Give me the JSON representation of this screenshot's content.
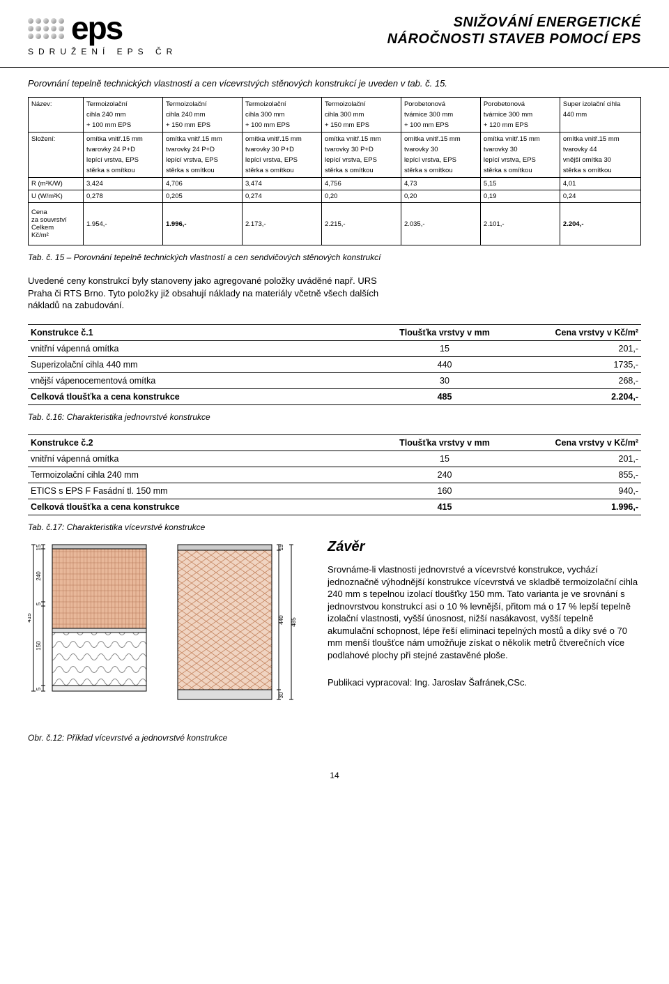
{
  "header": {
    "logo_text": "eps",
    "logo_sub": "SDRUŽENÍ EPS ČR",
    "title_line1": "SNIŽOVÁNÍ ENERGETICKÉ",
    "title_line2": "NÁROČNOSTI STAVEB POMOCÍ EPS"
  },
  "intro": "Porovnání tepelně technických vlastností a cen vícevrstvých stěnových konstrukcí je uveden v tab. č. 15.",
  "big_table": {
    "row_labels": {
      "nazev": "Název:",
      "slozeni": "Složení:",
      "r": "R (m²K/W)",
      "u": "U (W/m²K)",
      "cena1": "Cena",
      "cena2": "za souvrství",
      "cena3": "Celkem",
      "cena4": "Kč/m²"
    },
    "columns": [
      {
        "nazev": [
          "Termoizolační",
          "cihla 240 mm",
          "+ 100 mm EPS"
        ],
        "slozeni": [
          "omítka vnitř.15 mm",
          "tvarovky 24 P+D",
          "lepící vrstva, EPS",
          "stěrka s omítkou"
        ],
        "r": "3,424",
        "u": "0,278",
        "cena": "1.954,-"
      },
      {
        "nazev": [
          "Termoizolační",
          "cihla 240 mm",
          "+ 150 mm EPS"
        ],
        "slozeni": [
          "omítka vnitř.15 mm",
          "tvarovky 24 P+D",
          "lepící vrstva, EPS",
          "stěrka s omítkou"
        ],
        "r": "4,706",
        "u": "0,205",
        "cena": "1.996,-"
      },
      {
        "nazev": [
          "Termoizolační",
          "cihla 300 mm",
          "+ 100 mm EPS"
        ],
        "slozeni": [
          "omítka vnitř.15 mm",
          "tvarovky 30 P+D",
          "lepící vrstva, EPS",
          "stěrka s omítkou"
        ],
        "r": "3,474",
        "u": "0,274",
        "cena": "2.173,-"
      },
      {
        "nazev": [
          "Termoizolační",
          "cihla 300 mm",
          "+ 150 mm EPS"
        ],
        "slozeni": [
          "omítka vnitř.15 mm",
          "tvarovky 30 P+D",
          "lepící vrstva, EPS",
          "stěrka s omítkou"
        ],
        "r": "4,756",
        "u": "0,20",
        "cena": "2.215,-"
      },
      {
        "nazev": [
          "Porobetonová",
          "tvárnice 300 mm",
          "+ 100 mm EPS"
        ],
        "slozeni": [
          "omítka vnitř.15 mm",
          "tvarovky 30",
          "lepící vrstva, EPS",
          "stěrka s omítkou"
        ],
        "r": "4,73",
        "u": "0,20",
        "cena": "2.035,-"
      },
      {
        "nazev": [
          "Porobetonová",
          "tvárnice 300 mm",
          "+ 120 mm EPS"
        ],
        "slozeni": [
          "omítka vnitř.15 mm",
          "tvarovky 30",
          "lepící vrstva, EPS",
          "stěrka s omítkou"
        ],
        "r": "5,15",
        "u": "0,19",
        "cena": "2.101,-"
      },
      {
        "nazev": [
          "Super izolační cihla",
          "440 mm",
          ""
        ],
        "slozeni": [
          "omítka vnitř.15 mm",
          "tvarovky 44",
          "vnější omítka 30",
          "stěrka s omítkou"
        ],
        "r": "4,01",
        "u": "0,24",
        "cena": "2.204,-"
      }
    ],
    "bold_cena_cols": [
      1,
      6
    ]
  },
  "tab15_caption": "Tab. č. 15 – Porovnání tepelně technických vlastností a cen sendvičových stěnových konstrukcí",
  "body_para": "Uvedené ceny konstrukcí byly stanoveny jako agregované položky uváděné např. URS Praha či RTS Brno. Tyto položky již obsahují náklady na materiály včetně všech dalších nákladů na zabudování.",
  "table1": {
    "title": "Konstrukce č.1",
    "col2": "Tloušťka vrstvy v mm",
    "col3": "Cena vrstvy v Kč/m²",
    "rows": [
      [
        "vnitřní vápenná omítka",
        "15",
        "201,-"
      ],
      [
        "Superizolační cihla 440 mm",
        "440",
        "1735,-"
      ],
      [
        "vnější vápenocementová omítka",
        "30",
        "268,-"
      ]
    ],
    "total": [
      "Celková tloušťka a cena konstrukce",
      "485",
      "2.204,-"
    ]
  },
  "tab16_caption": "Tab. č.16: Charakteristika jednovrstvé konstrukce",
  "table2": {
    "title": "Konstrukce č.2",
    "col2": "Tloušťka vrstvy v mm",
    "col3": "Cena vrstvy v Kč/m²",
    "rows": [
      [
        "vnitřní vápenná omítka",
        "15",
        "201,-"
      ],
      [
        "Termoizolační cihla 240 mm",
        "240",
        "855,-"
      ],
      [
        "ETICS s EPS F Fasádní tl. 150 mm",
        "160",
        "940,-"
      ]
    ],
    "total": [
      "Celková tloušťka a cena konstrukce",
      "415",
      "1.996,-"
    ]
  },
  "tab17_caption": "Tab. č.17: Charakteristika vícevrstvé konstrukce",
  "zaver": {
    "title": "Závěr",
    "para1": "Srovnáme-li vlastnosti jednovrstvé a vícevrstvé konstrukce, vychází jednoznačně výhodnější konstrukce vícevrstvá ve skladbě termoizolační cihla 240 mm s tepelnou izolací tloušťky 150 mm. Tato varianta je ve srovnání s jednovrstvou konstrukcí asi o 10 % levnější, přitom má o 17 % lepší tepelně izolační vlastnosti, vyšší únosnost, nižší nasákavost, vyšší tepelně akumulační schopnost, lépe řeší eliminaci tepelných mostů a díky své o 70 mm menší tloušťce nám umožňuje získat o několik metrů čtverečních více podlahové plochy při stejné zastavěné ploše.",
    "author": "Publikaci vypracoval:  Ing. Jaroslav Šafránek,CSc."
  },
  "obr_caption": "Obr. č.12: Příklad vícevrstvé a jednovrstvé konstrukce",
  "diagram": {
    "left": {
      "total": "415",
      "segments": [
        "5",
        "150",
        "5",
        "240",
        "15"
      ]
    },
    "right": {
      "segments_right": [
        "15",
        "440",
        "30"
      ],
      "total_left": "485"
    },
    "colors": {
      "brick": "#d99b7e",
      "hatch": "#b57556",
      "line": "#000000",
      "eps": "#ffffff"
    }
  },
  "page_num": "14"
}
